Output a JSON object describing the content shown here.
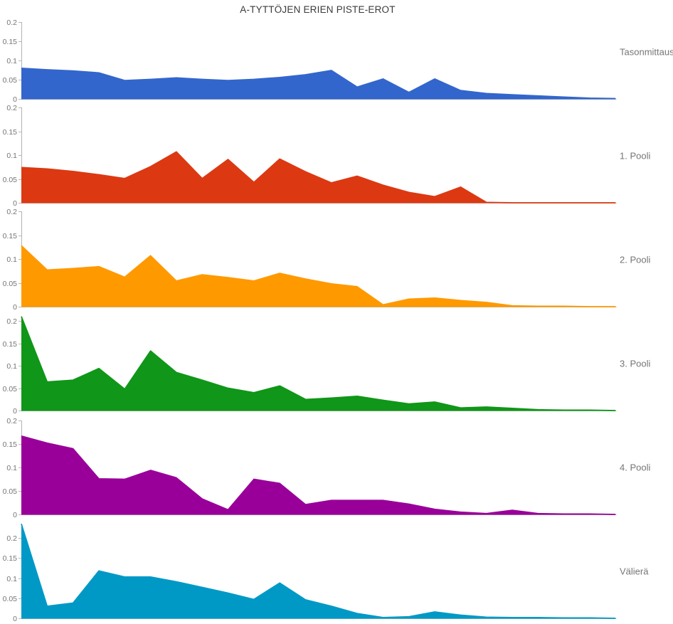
{
  "title": "A-TYTTÖJEN ERIEN PISTE-EROT",
  "y_axis": {
    "ticks": [
      0,
      0.05,
      0.1,
      0.15,
      0.2
    ],
    "tick_labels": [
      "0",
      "0.05",
      "0.1",
      "0.15",
      "0.2"
    ],
    "ylim": [
      0,
      0.2
    ]
  },
  "chart_data": {
    "type": "area",
    "x": {
      "point_count": 24,
      "x_labels_visible": false
    },
    "panels": [
      {
        "label": "Tasonmittaus",
        "color": "#3366CC",
        "values": [
          0.08,
          0.076,
          0.073,
          0.068,
          0.048,
          0.051,
          0.055,
          0.051,
          0.048,
          0.051,
          0.056,
          0.063,
          0.074,
          0.031,
          0.052,
          0.017,
          0.052,
          0.022,
          0.014,
          0.011,
          0.008,
          0.005,
          0.002,
          0.001
        ]
      },
      {
        "label": "1. Pooli",
        "color": "#DC3912",
        "values": [
          0.074,
          0.071,
          0.066,
          0.059,
          0.051,
          0.076,
          0.107,
          0.051,
          0.091,
          0.043,
          0.092,
          0.065,
          0.042,
          0.056,
          0.037,
          0.022,
          0.013,
          0.033,
          0.001,
          0,
          0,
          0,
          0,
          0
        ]
      },
      {
        "label": "2. Pooli",
        "color": "#FF9900",
        "values": [
          0.128,
          0.077,
          0.08,
          0.084,
          0.062,
          0.107,
          0.054,
          0.067,
          0.061,
          0.054,
          0.07,
          0.058,
          0.048,
          0.042,
          0.004,
          0.016,
          0.018,
          0.013,
          0.009,
          0.002,
          0.001,
          0.001,
          0,
          0
        ]
      },
      {
        "label": "3. Pooli",
        "color": "#109618",
        "values": [
          0.21,
          0.064,
          0.068,
          0.094,
          0.048,
          0.133,
          0.085,
          0.068,
          0.05,
          0.04,
          0.055,
          0.025,
          0.028,
          0.032,
          0.023,
          0.015,
          0.019,
          0.006,
          0.008,
          0.005,
          0.002,
          0.001,
          0.001,
          0
        ]
      },
      {
        "label": "4. Pooli",
        "color": "#990099",
        "values": [
          0.167,
          0.152,
          0.14,
          0.076,
          0.075,
          0.094,
          0.078,
          0.033,
          0.01,
          0.075,
          0.066,
          0.021,
          0.03,
          0.03,
          0.03,
          0.022,
          0.011,
          0.005,
          0.002,
          0.009,
          0.002,
          0.001,
          0.001,
          0
        ]
      },
      {
        "label": "Välierä",
        "color": "#0099C6",
        "values": [
          0.235,
          0.03,
          0.038,
          0.118,
          0.103,
          0.103,
          0.091,
          0.077,
          0.063,
          0.047,
          0.088,
          0.046,
          0.03,
          0.012,
          0.002,
          0.004,
          0.016,
          0.008,
          0.003,
          0.002,
          0.002,
          0.001,
          0.001,
          0
        ]
      }
    ],
    "axis_color": "#b3b3b3",
    "tick_label_color": "#757575",
    "series_label_color": "#757575"
  }
}
